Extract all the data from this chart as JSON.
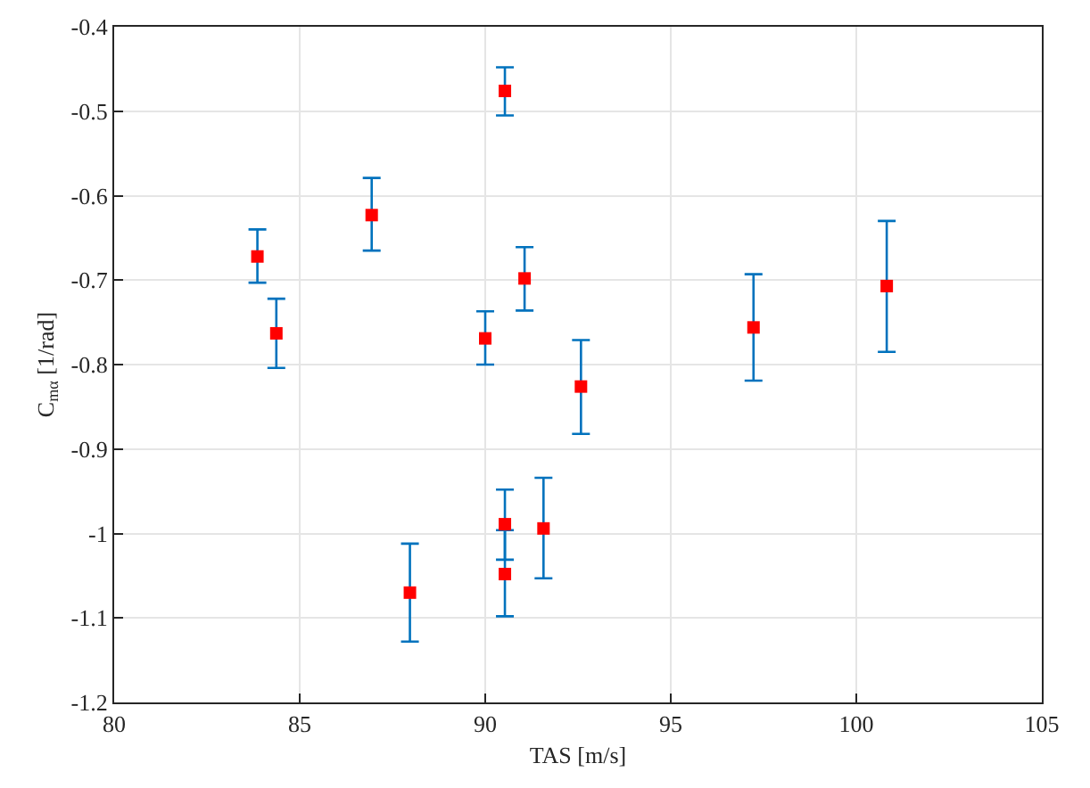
{
  "chart_data": {
    "type": "scatter",
    "xlabel": "TAS [m/s]",
    "ylabel": "C$_{mα}$ [1/rad]",
    "x": [
      83.86,
      84.37,
      86.94,
      90.53,
      90.0,
      91.06,
      92.58,
      97.23,
      100.82,
      87.97,
      90.53,
      90.53,
      91.57
    ],
    "series": [
      {
        "color": "#ff0000",
        "values": [
          -0.672,
          -0.763,
          -0.623,
          -0.476,
          -0.769,
          -0.698,
          -0.826,
          -0.756,
          -0.707,
          -1.07,
          -0.989,
          -1.048,
          -0.994
        ],
        "errors": [
          [
            -0.703,
            -0.64
          ],
          [
            -0.804,
            -0.722
          ],
          [
            -0.665,
            -0.579
          ],
          [
            -0.505,
            -0.448
          ],
          [
            -0.8,
            -0.737
          ],
          [
            -0.736,
            -0.661
          ],
          [
            -0.882,
            -0.771
          ],
          [
            -0.819,
            -0.693
          ],
          [
            -0.785,
            -0.63
          ],
          [
            -1.128,
            -1.012
          ],
          [
            -1.031,
            -0.948
          ],
          [
            -1.098,
            -0.996
          ],
          [
            -1.053,
            -0.934
          ]
        ]
      }
    ],
    "xlim": [
      80,
      105
    ],
    "xticks": [
      80,
      85,
      90,
      95,
      100,
      105
    ],
    "ylim": [
      -1.2,
      -0.4
    ],
    "yticks": [
      -1.2,
      -1.1,
      -1,
      -0.9,
      -0.8,
      -0.7,
      -0.6,
      -0.5,
      -0.4
    ],
    "grid": true,
    "marker": "square",
    "line_style": "none"
  }
}
